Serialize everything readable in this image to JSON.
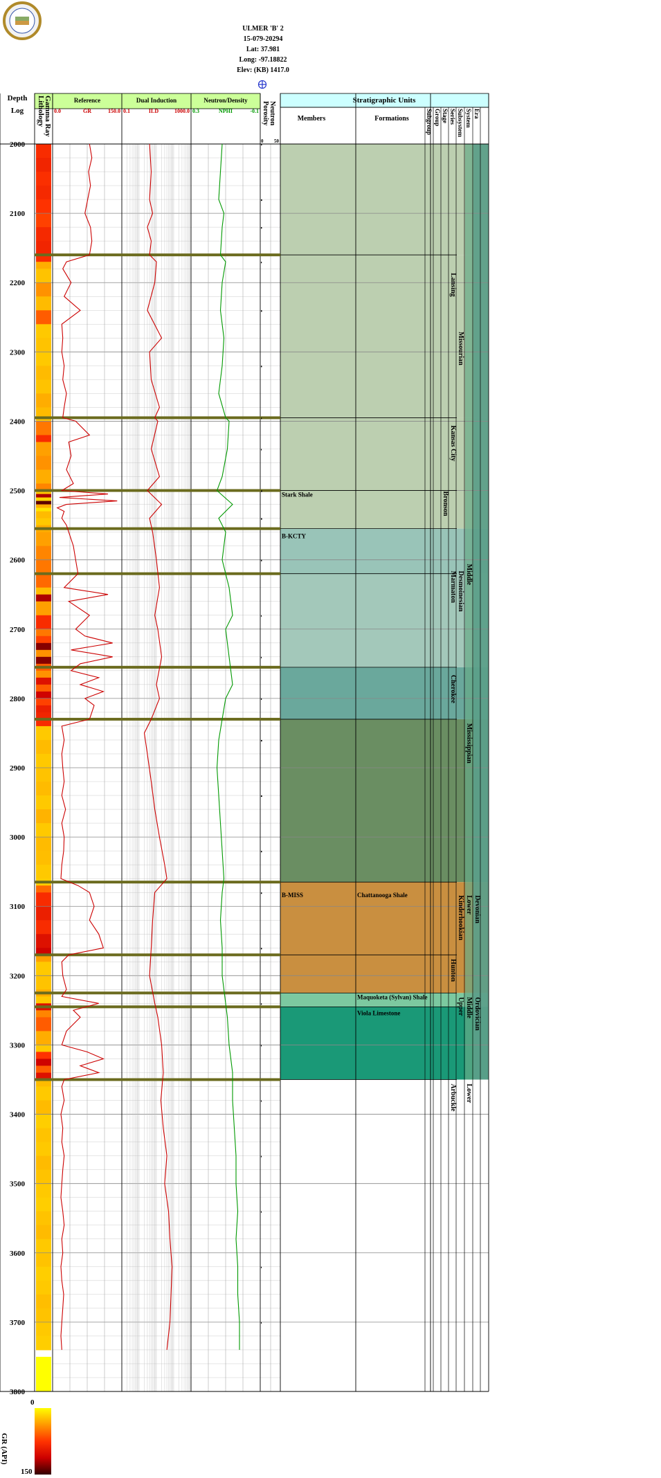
{
  "well": {
    "name": "ULMER 'B' 2",
    "api": "15-079-20294",
    "lat": "Lat: 37.981",
    "long": "Long: -97.18822",
    "elev": "Elev: (KB) 1417.0"
  },
  "logo": {
    "name": "kansas-geological-survey-seal",
    "fill": "#f2f2f2",
    "ring": "#b08a2a"
  },
  "crosshair_icon": "crosshair-circle-icon",
  "headers": {
    "depth": "Depth",
    "log": "Log",
    "lithology": "Lithology",
    "gamma_ray": "Gamma Ray",
    "reference": "Reference",
    "reference_min": "0.0",
    "reference_curve": "GR",
    "reference_max": "150.0",
    "dual_induction": "Dual Induction",
    "dual_min": "0.1",
    "dual_curve": "ILD",
    "dual_max": "1000.0",
    "neutron_density": "Neutron/Density",
    "nd_min": "0.3",
    "nd_curve": "NPHI",
    "nd_max": "-0.1",
    "porosity": "Porosity",
    "neutron": "Neutron",
    "por_min": "0",
    "por_max": "50",
    "strat_units": "Stratigraphic Units",
    "members": "Members",
    "formations": "Formations",
    "rank_cols": [
      "Subgroup",
      "Group",
      "Stage",
      "Series",
      "Subsystem",
      "System",
      "Era"
    ]
  },
  "colors": {
    "header_green": "#ccff99",
    "header_cyan": "#ccffff",
    "gr_curve": "#cc0000",
    "nphi_curve": "#009900",
    "formation_line": "#6b6b1e",
    "grid": "#999999"
  },
  "depth_ticks": [
    "2000",
    "2100",
    "2200",
    "2300",
    "2400",
    "2500",
    "2600",
    "2700",
    "2800",
    "2900",
    "3000",
    "3100",
    "3200",
    "3300",
    "3400",
    "3500",
    "3600",
    "3700",
    "3800"
  ],
  "members": [
    {
      "depth": 2500,
      "name": "Stark Shale"
    },
    {
      "depth": 2560,
      "name": "B-KCTY"
    },
    {
      "depth": 3078,
      "name": "B-MISS"
    }
  ],
  "formations": [
    {
      "depth": 3078,
      "name": "Chattanooga Shale"
    },
    {
      "depth": 3225,
      "name": "Maquoketa (Sylvan) Shale"
    },
    {
      "depth": 3248,
      "name": "Viola Limestone"
    }
  ],
  "strat_labels": [
    {
      "col": 3,
      "top": 2180,
      "bot": 2490,
      "name": "Lansing"
    },
    {
      "col": 3,
      "top": 2400,
      "bot": 2500,
      "name": "Kansas City"
    },
    {
      "col": 4,
      "top": 2265,
      "bot": 2500,
      "name": "Missourian"
    },
    {
      "col": 2,
      "top": 2495,
      "bot": 2560,
      "name": "Bronson"
    },
    {
      "col": 3,
      "top": 2610,
      "bot": 2760,
      "name": "Marmaton"
    },
    {
      "col": 4,
      "top": 2610,
      "bot": 2760,
      "name": "Desmoinesian"
    },
    {
      "col": 5,
      "top": 2600,
      "bot": 2780,
      "name": "Middle"
    },
    {
      "col": 3,
      "top": 2760,
      "bot": 2830,
      "name": "Cherokee"
    },
    {
      "col": 5,
      "top": 2830,
      "bot": 3060,
      "name": "Mississippian"
    },
    {
      "col": 4,
      "top": 3078,
      "bot": 3170,
      "name": "Kinderhookian"
    },
    {
      "col": 5,
      "top": 3078,
      "bot": 3100,
      "name": "Lower"
    },
    {
      "col": 6,
      "top": 3078,
      "bot": 3200,
      "name": "Devonian"
    },
    {
      "col": 3,
      "top": 3170,
      "bot": 3230,
      "name": "Hunton"
    },
    {
      "col": 4,
      "top": 3225,
      "bot": 3260,
      "name": "Upper"
    },
    {
      "col": 5,
      "top": 3225,
      "bot": 3290,
      "name": "Middle"
    },
    {
      "col": 6,
      "top": 3225,
      "bot": 3350,
      "name": "Ordovician"
    },
    {
      "col": 3,
      "top": 3350,
      "bot": 3410,
      "name": "Arbuckle"
    },
    {
      "col": 5,
      "top": 3350,
      "bot": 3400,
      "name": "Lower"
    }
  ],
  "legend": {
    "min": "0",
    "max": "150",
    "label": "GR (API)"
  },
  "chart_data": {
    "type": "line",
    "y_axis": "Depth",
    "ylim": [
      2000,
      3800
    ],
    "depth_tops": [
      2000,
      2160,
      2395,
      2500,
      2555,
      2620,
      2755,
      2830,
      3065,
      3170,
      3225,
      3245,
      3350,
      3800
    ],
    "series": [
      {
        "name": "GR",
        "range": [
          0,
          150
        ],
        "depth": [
          2000,
          2020,
          2040,
          2060,
          2080,
          2100,
          2120,
          2140,
          2160,
          2170,
          2180,
          2200,
          2220,
          2240,
          2260,
          2280,
          2300,
          2320,
          2340,
          2360,
          2380,
          2395,
          2400,
          2420,
          2430,
          2450,
          2470,
          2490,
          2500,
          2505,
          2510,
          2515,
          2520,
          2525,
          2530,
          2540,
          2550,
          2560,
          2580,
          2600,
          2620,
          2640,
          2650,
          2660,
          2680,
          2700,
          2710,
          2720,
          2730,
          2740,
          2750,
          2760,
          2770,
          2780,
          2790,
          2800,
          2810,
          2820,
          2830,
          2840,
          2860,
          2880,
          2900,
          2920,
          2940,
          2960,
          2980,
          3000,
          3020,
          3040,
          3060,
          3070,
          3080,
          3100,
          3120,
          3140,
          3160,
          3170,
          3180,
          3200,
          3220,
          3230,
          3240,
          3250,
          3260,
          3280,
          3300,
          3310,
          3320,
          3330,
          3340,
          3350,
          3360,
          3380,
          3400,
          3420,
          3440,
          3460,
          3480,
          3500,
          3520,
          3540,
          3560,
          3580,
          3600,
          3620,
          3640,
          3660,
          3680,
          3700,
          3720,
          3740
        ],
        "values": [
          80,
          85,
          78,
          82,
          76,
          70,
          82,
          85,
          80,
          30,
          22,
          40,
          25,
          60,
          20,
          22,
          20,
          25,
          22,
          30,
          25,
          22,
          50,
          80,
          35,
          40,
          30,
          45,
          20,
          120,
          15,
          140,
          30,
          10,
          25,
          20,
          30,
          35,
          45,
          50,
          55,
          25,
          120,
          35,
          80,
          50,
          70,
          130,
          40,
          130,
          60,
          40,
          100,
          60,
          110,
          70,
          90,
          85,
          80,
          20,
          25,
          20,
          22,
          25,
          20,
          28,
          20,
          25,
          24,
          20,
          18,
          55,
          80,
          90,
          80,
          100,
          110,
          35,
          20,
          22,
          30,
          20,
          100,
          45,
          60,
          30,
          20,
          75,
          110,
          60,
          100,
          25,
          20,
          25,
          18,
          22,
          20,
          25,
          22,
          20,
          18,
          22,
          25,
          20,
          22,
          18,
          20,
          24,
          22,
          20,
          18,
          20
        ]
      },
      {
        "name": "ILD",
        "range": [
          0.1,
          1000
        ],
        "log": true,
        "depth": [
          2000,
          2040,
          2080,
          2100,
          2120,
          2140,
          2160,
          2170,
          2200,
          2240,
          2280,
          2300,
          2340,
          2380,
          2395,
          2400,
          2440,
          2480,
          2500,
          2520,
          2540,
          2560,
          2600,
          2640,
          2680,
          2700,
          2740,
          2780,
          2800,
          2830,
          2850,
          2880,
          2920,
          2960,
          3000,
          3040,
          3060,
          3080,
          3120,
          3160,
          3200,
          3240,
          3260,
          3300,
          3340,
          3380,
          3420,
          3460,
          3500,
          3540,
          3580,
          3620,
          3660,
          3700,
          3740
        ],
        "values": [
          4,
          5,
          4,
          6,
          3,
          5,
          4,
          10,
          8,
          3,
          20,
          4,
          5,
          15,
          8,
          12,
          5,
          15,
          3,
          20,
          4,
          6,
          10,
          15,
          8,
          12,
          20,
          10,
          15,
          5,
          2,
          3,
          5,
          8,
          15,
          30,
          40,
          8,
          6,
          5,
          4,
          8,
          12,
          20,
          25,
          18,
          25,
          40,
          30,
          50,
          60,
          80,
          70,
          60,
          40
        ]
      },
      {
        "name": "NPHI",
        "range": [
          0.3,
          -0.1
        ],
        "depth": [
          2000,
          2040,
          2080,
          2100,
          2120,
          2160,
          2170,
          2200,
          2240,
          2280,
          2320,
          2360,
          2395,
          2400,
          2440,
          2480,
          2500,
          2520,
          2540,
          2560,
          2600,
          2640,
          2680,
          2700,
          2740,
          2780,
          2800,
          2830,
          2860,
          2900,
          2940,
          2980,
          3020,
          3060,
          3080,
          3120,
          3160,
          3200,
          3240,
          3260,
          3300,
          3340,
          3380,
          3420,
          3460,
          3500,
          3540,
          3580,
          3620,
          3660,
          3700,
          3740
        ],
        "values": [
          0.12,
          0.13,
          0.14,
          0.11,
          0.12,
          0.13,
          0.1,
          0.12,
          0.13,
          0.11,
          0.12,
          0.14,
          0.1,
          0.08,
          0.09,
          0.12,
          0.15,
          0.06,
          0.14,
          0.1,
          0.12,
          0.08,
          0.06,
          0.1,
          0.08,
          0.06,
          0.1,
          0.12,
          0.14,
          0.15,
          0.14,
          0.13,
          0.12,
          0.11,
          0.12,
          0.13,
          0.12,
          0.12,
          0.1,
          0.09,
          0.08,
          0.06,
          0.06,
          0.05,
          0.04,
          0.04,
          0.03,
          0.04,
          0.03,
          0.03,
          0.02,
          0.02
        ]
      }
    ]
  }
}
